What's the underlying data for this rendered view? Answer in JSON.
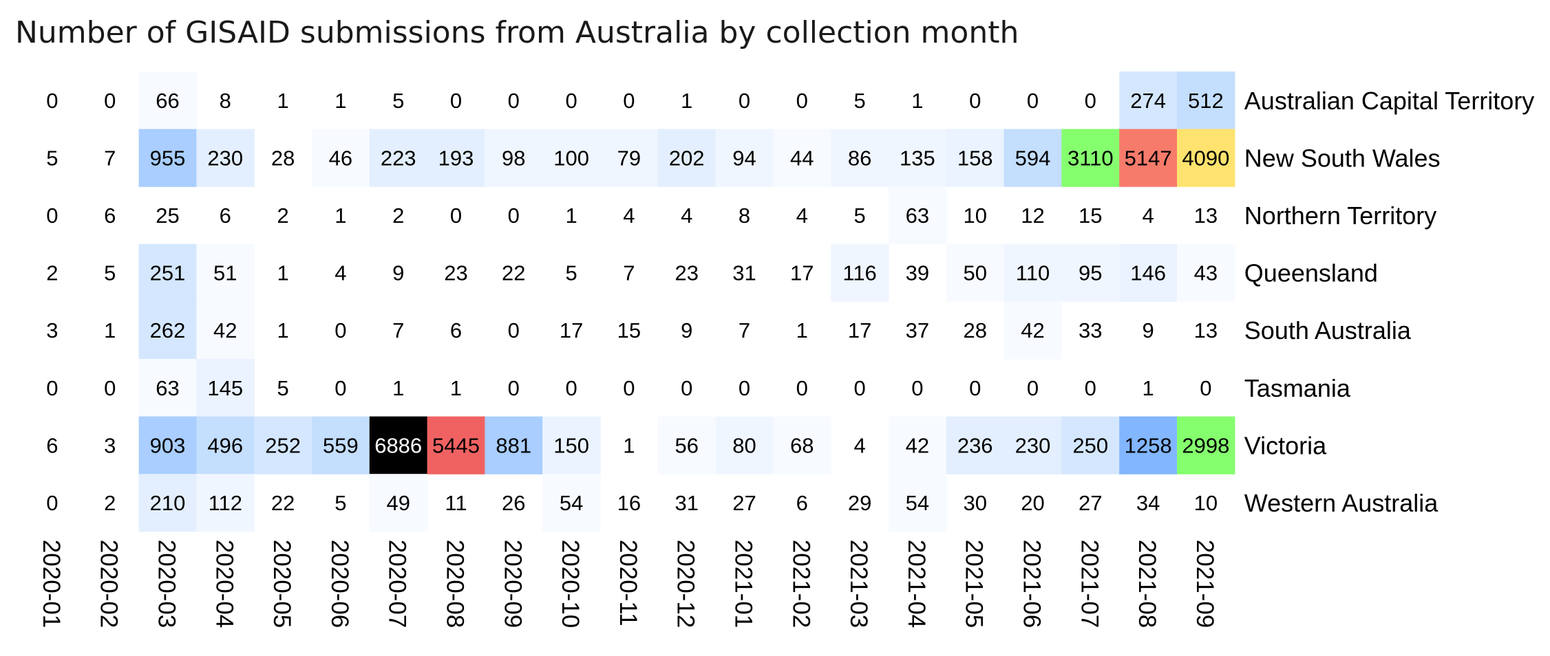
{
  "chart_data": {
    "type": "heatmap",
    "title": "Number of GISAID submissions from Australia by collection month",
    "xlabel": "",
    "ylabel": "",
    "x": [
      "2020-01",
      "2020-02",
      "2020-03",
      "2020-04",
      "2020-05",
      "2020-06",
      "2020-07",
      "2020-08",
      "2020-09",
      "2020-10",
      "2020-11",
      "2020-12",
      "2021-01",
      "2021-02",
      "2021-03",
      "2021-04",
      "2021-05",
      "2021-06",
      "2021-07",
      "2021-08",
      "2021-09"
    ],
    "y": [
      "Australian Capital Territory",
      "New South Wales",
      "Northern Territory",
      "Queensland",
      "South Australia",
      "Tasmania",
      "Victoria",
      "Western Australia"
    ],
    "values": [
      [
        0,
        0,
        66,
        8,
        1,
        1,
        5,
        0,
        0,
        0,
        0,
        1,
        0,
        0,
        5,
        1,
        0,
        0,
        0,
        274,
        512
      ],
      [
        5,
        7,
        955,
        230,
        28,
        46,
        223,
        193,
        98,
        100,
        79,
        202,
        94,
        44,
        86,
        135,
        158,
        594,
        3110,
        5147,
        4090
      ],
      [
        0,
        6,
        25,
        6,
        2,
        1,
        2,
        0,
        0,
        1,
        4,
        4,
        8,
        4,
        5,
        63,
        10,
        12,
        15,
        4,
        13
      ],
      [
        2,
        5,
        251,
        51,
        1,
        4,
        9,
        23,
        22,
        5,
        7,
        23,
        31,
        17,
        116,
        39,
        50,
        110,
        95,
        146,
        43
      ],
      [
        3,
        1,
        262,
        42,
        1,
        0,
        7,
        6,
        0,
        17,
        15,
        9,
        7,
        1,
        17,
        37,
        28,
        42,
        33,
        9,
        13
      ],
      [
        0,
        0,
        63,
        145,
        5,
        0,
        1,
        1,
        0,
        0,
        0,
        0,
        0,
        0,
        0,
        0,
        0,
        0,
        0,
        1,
        0
      ],
      [
        6,
        3,
        903,
        496,
        252,
        559,
        6886,
        5445,
        881,
        150,
        1,
        56,
        80,
        68,
        4,
        42,
        236,
        230,
        250,
        1258,
        2998
      ],
      [
        0,
        2,
        210,
        112,
        22,
        5,
        49,
        11,
        26,
        54,
        16,
        31,
        27,
        6,
        29,
        54,
        30,
        20,
        27,
        34,
        10
      ]
    ],
    "row_labels_position": "right",
    "column_labels_position": "bottom",
    "column_labels_rotation": "vertical",
    "color_scale": [
      "#ffffff",
      "#eaf3ff",
      "#d2e6ff",
      "#a9ceff",
      "#7fb3ff",
      "#85ff6e",
      "#ffe36e",
      "#f77a6a",
      "#f06060",
      "#000000"
    ],
    "grid": false
  }
}
